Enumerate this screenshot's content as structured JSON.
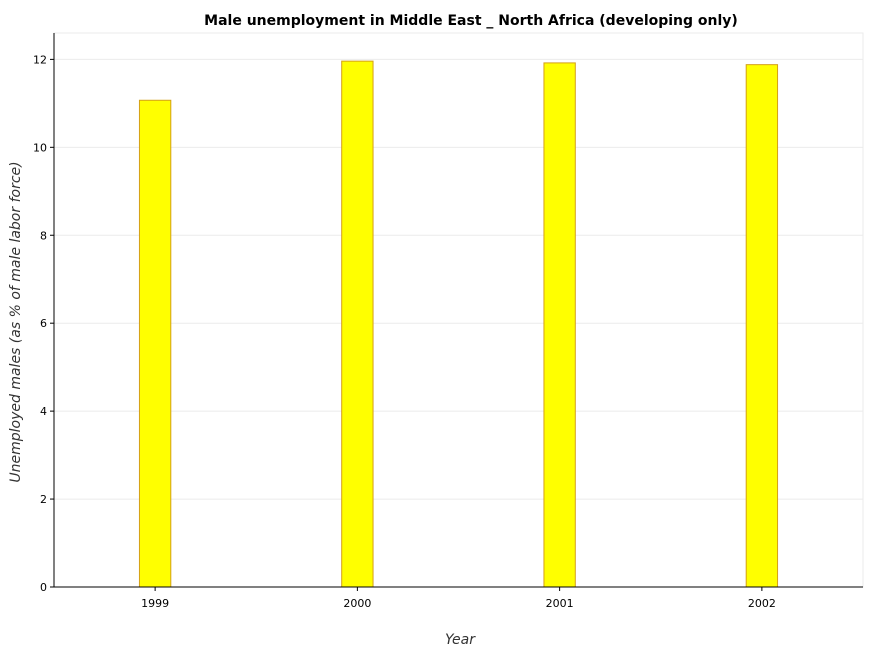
{
  "chart_data": {
    "type": "bar",
    "title": "Male unemployment in Middle East _ North Africa (developing only)",
    "xlabel": "Year",
    "ylabel": "Unemployed males (as % of male labor force)",
    "categories": [
      "1999",
      "2000",
      "2001",
      "2002"
    ],
    "series": [
      {
        "values": [
          11.07,
          11.96,
          11.92,
          11.88
        ]
      }
    ],
    "ylim": [
      0,
      12.6
    ],
    "yticks": [
      0,
      2,
      4,
      6,
      8,
      10,
      12
    ],
    "ytick_labels": [
      "0",
      "2",
      "4",
      "6",
      "8",
      "10",
      "12"
    ],
    "grid": true,
    "legend": "none",
    "colors": {
      "bar_fill": "#ffff00",
      "bar_stroke": "#d4a017",
      "grid": "#ebebeb"
    }
  }
}
